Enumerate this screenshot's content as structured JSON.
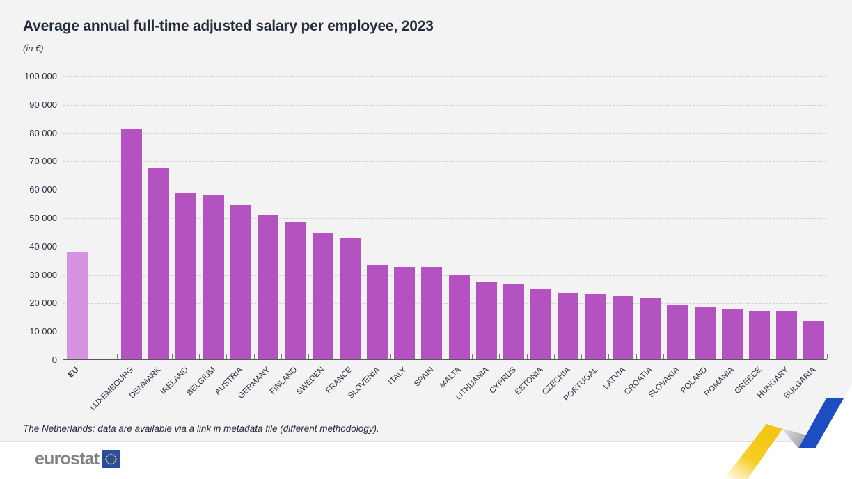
{
  "header": {
    "title": "Average annual full-time adjusted salary per employee, 2023",
    "subtitle": "(in €)"
  },
  "footnote": "The Netherlands: data are available via a link in metadata file (different methodology).",
  "logo": {
    "text": "eurostat"
  },
  "colors": {
    "bar": "#b452c2",
    "eu_bar": "#d492e0",
    "card_background": "#f4f3f4",
    "text_dark": "#242e3b",
    "gridline": "#cfcfcf",
    "axis": "#58595b",
    "ribbon_yellow": "#f5c515",
    "ribbon_blue": "#1d4dc2",
    "logo_gray": "#7e8084",
    "flag_blue": "#2a4da2",
    "flag_star_yellow": "#f8d12c"
  },
  "chart_data": {
    "type": "bar",
    "title": "Average annual full-time adjusted salary per employee, 2023",
    "subtitle": "(in €)",
    "xlabel": "",
    "ylabel": "€",
    "ylim": [
      0,
      100000
    ],
    "ytick_step": 10000,
    "ytick_labels": [
      "0",
      "10 000",
      "20 000",
      "30 000",
      "40 000",
      "50 000",
      "60 000",
      "70 000",
      "80 000",
      "90 000",
      "100 000"
    ],
    "grid": "horizontal-dashed",
    "legend": "none",
    "highlight_index": 0,
    "gap_after_index": 0,
    "categories": [
      "EU",
      "LUXEMBOURG",
      "DENMARK",
      "IRELAND",
      "BELGIUM",
      "AUSTRIA",
      "GERMANY",
      "FINLAND",
      "SWEDEN",
      "FRANCE",
      "SLOVENIA",
      "ITALY",
      "SPAIN",
      "MALTA",
      "LITHUANIA",
      "CYPRUS",
      "ESTONIA",
      "CZECHIA",
      "PORTUGAL",
      "LATVIA",
      "CROATIA",
      "SLOVAKIA",
      "POLAND",
      "ROMANIA",
      "GREECE",
      "HUNGARY",
      "BULGARIA"
    ],
    "values": [
      37900,
      81100,
      67600,
      58700,
      58000,
      54500,
      51000,
      48400,
      44600,
      42700,
      33400,
      32700,
      32600,
      30000,
      27300,
      26600,
      25100,
      23500,
      23000,
      22400,
      21600,
      19300,
      18400,
      17900,
      17000,
      16900,
      13500
    ]
  }
}
